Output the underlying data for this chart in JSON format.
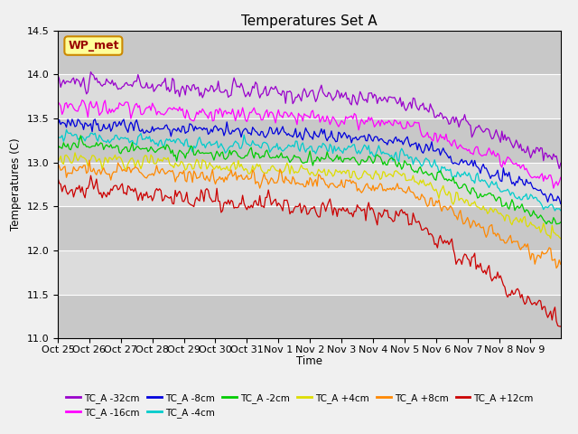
{
  "title": "Temperatures Set A",
  "xlabel": "Time",
  "ylabel": "Temperatures (C)",
  "ylim": [
    11.0,
    14.5
  ],
  "n_points": 352,
  "x_tick_labels": [
    "Oct 25",
    "Oct 26",
    "Oct 27",
    "Oct 28",
    "Oct 29",
    "Oct 30",
    "Oct 31",
    "Nov 1",
    "Nov 2",
    "Nov 3",
    "Nov 4",
    "Nov 5",
    "Nov 6",
    "Nov 7",
    "Nov 8",
    "Nov 9"
  ],
  "x_tick_positions": [
    0,
    22,
    44,
    66,
    88,
    110,
    132,
    154,
    176,
    198,
    220,
    242,
    264,
    286,
    308,
    330
  ],
  "series": [
    {
      "label": "TC_A -32cm",
      "color": "#9900cc",
      "start": 13.92,
      "end": 13.0,
      "noise_scale": 0.07,
      "seed": 10
    },
    {
      "label": "TC_A -16cm",
      "color": "#ff00ff",
      "start": 13.65,
      "end": 12.75,
      "noise_scale": 0.06,
      "seed": 20
    },
    {
      "label": "TC_A -8cm",
      "color": "#0000dd",
      "start": 13.45,
      "end": 12.6,
      "noise_scale": 0.055,
      "seed": 30
    },
    {
      "label": "TC_A -4cm",
      "color": "#00cccc",
      "start": 13.3,
      "end": 12.45,
      "noise_scale": 0.05,
      "seed": 40
    },
    {
      "label": "TC_A -2cm",
      "color": "#00cc00",
      "start": 13.2,
      "end": 12.3,
      "noise_scale": 0.045,
      "seed": 50
    },
    {
      "label": "TC_A +4cm",
      "color": "#dddd00",
      "start": 13.05,
      "end": 12.15,
      "noise_scale": 0.05,
      "seed": 60
    },
    {
      "label": "TC_A +8cm",
      "color": "#ff8800",
      "start": 12.95,
      "end": 11.85,
      "noise_scale": 0.06,
      "seed": 70
    },
    {
      "label": "TC_A +12cm",
      "color": "#cc0000",
      "start": 12.72,
      "end": 11.2,
      "noise_scale": 0.08,
      "seed": 80
    }
  ],
  "annotation_text": "WP_met",
  "plot_bg_color": "#dcdcdc",
  "fig_bg_color": "#f0f0f0",
  "legend_ncol_row1": 6,
  "legend_ncol_row2": 2
}
